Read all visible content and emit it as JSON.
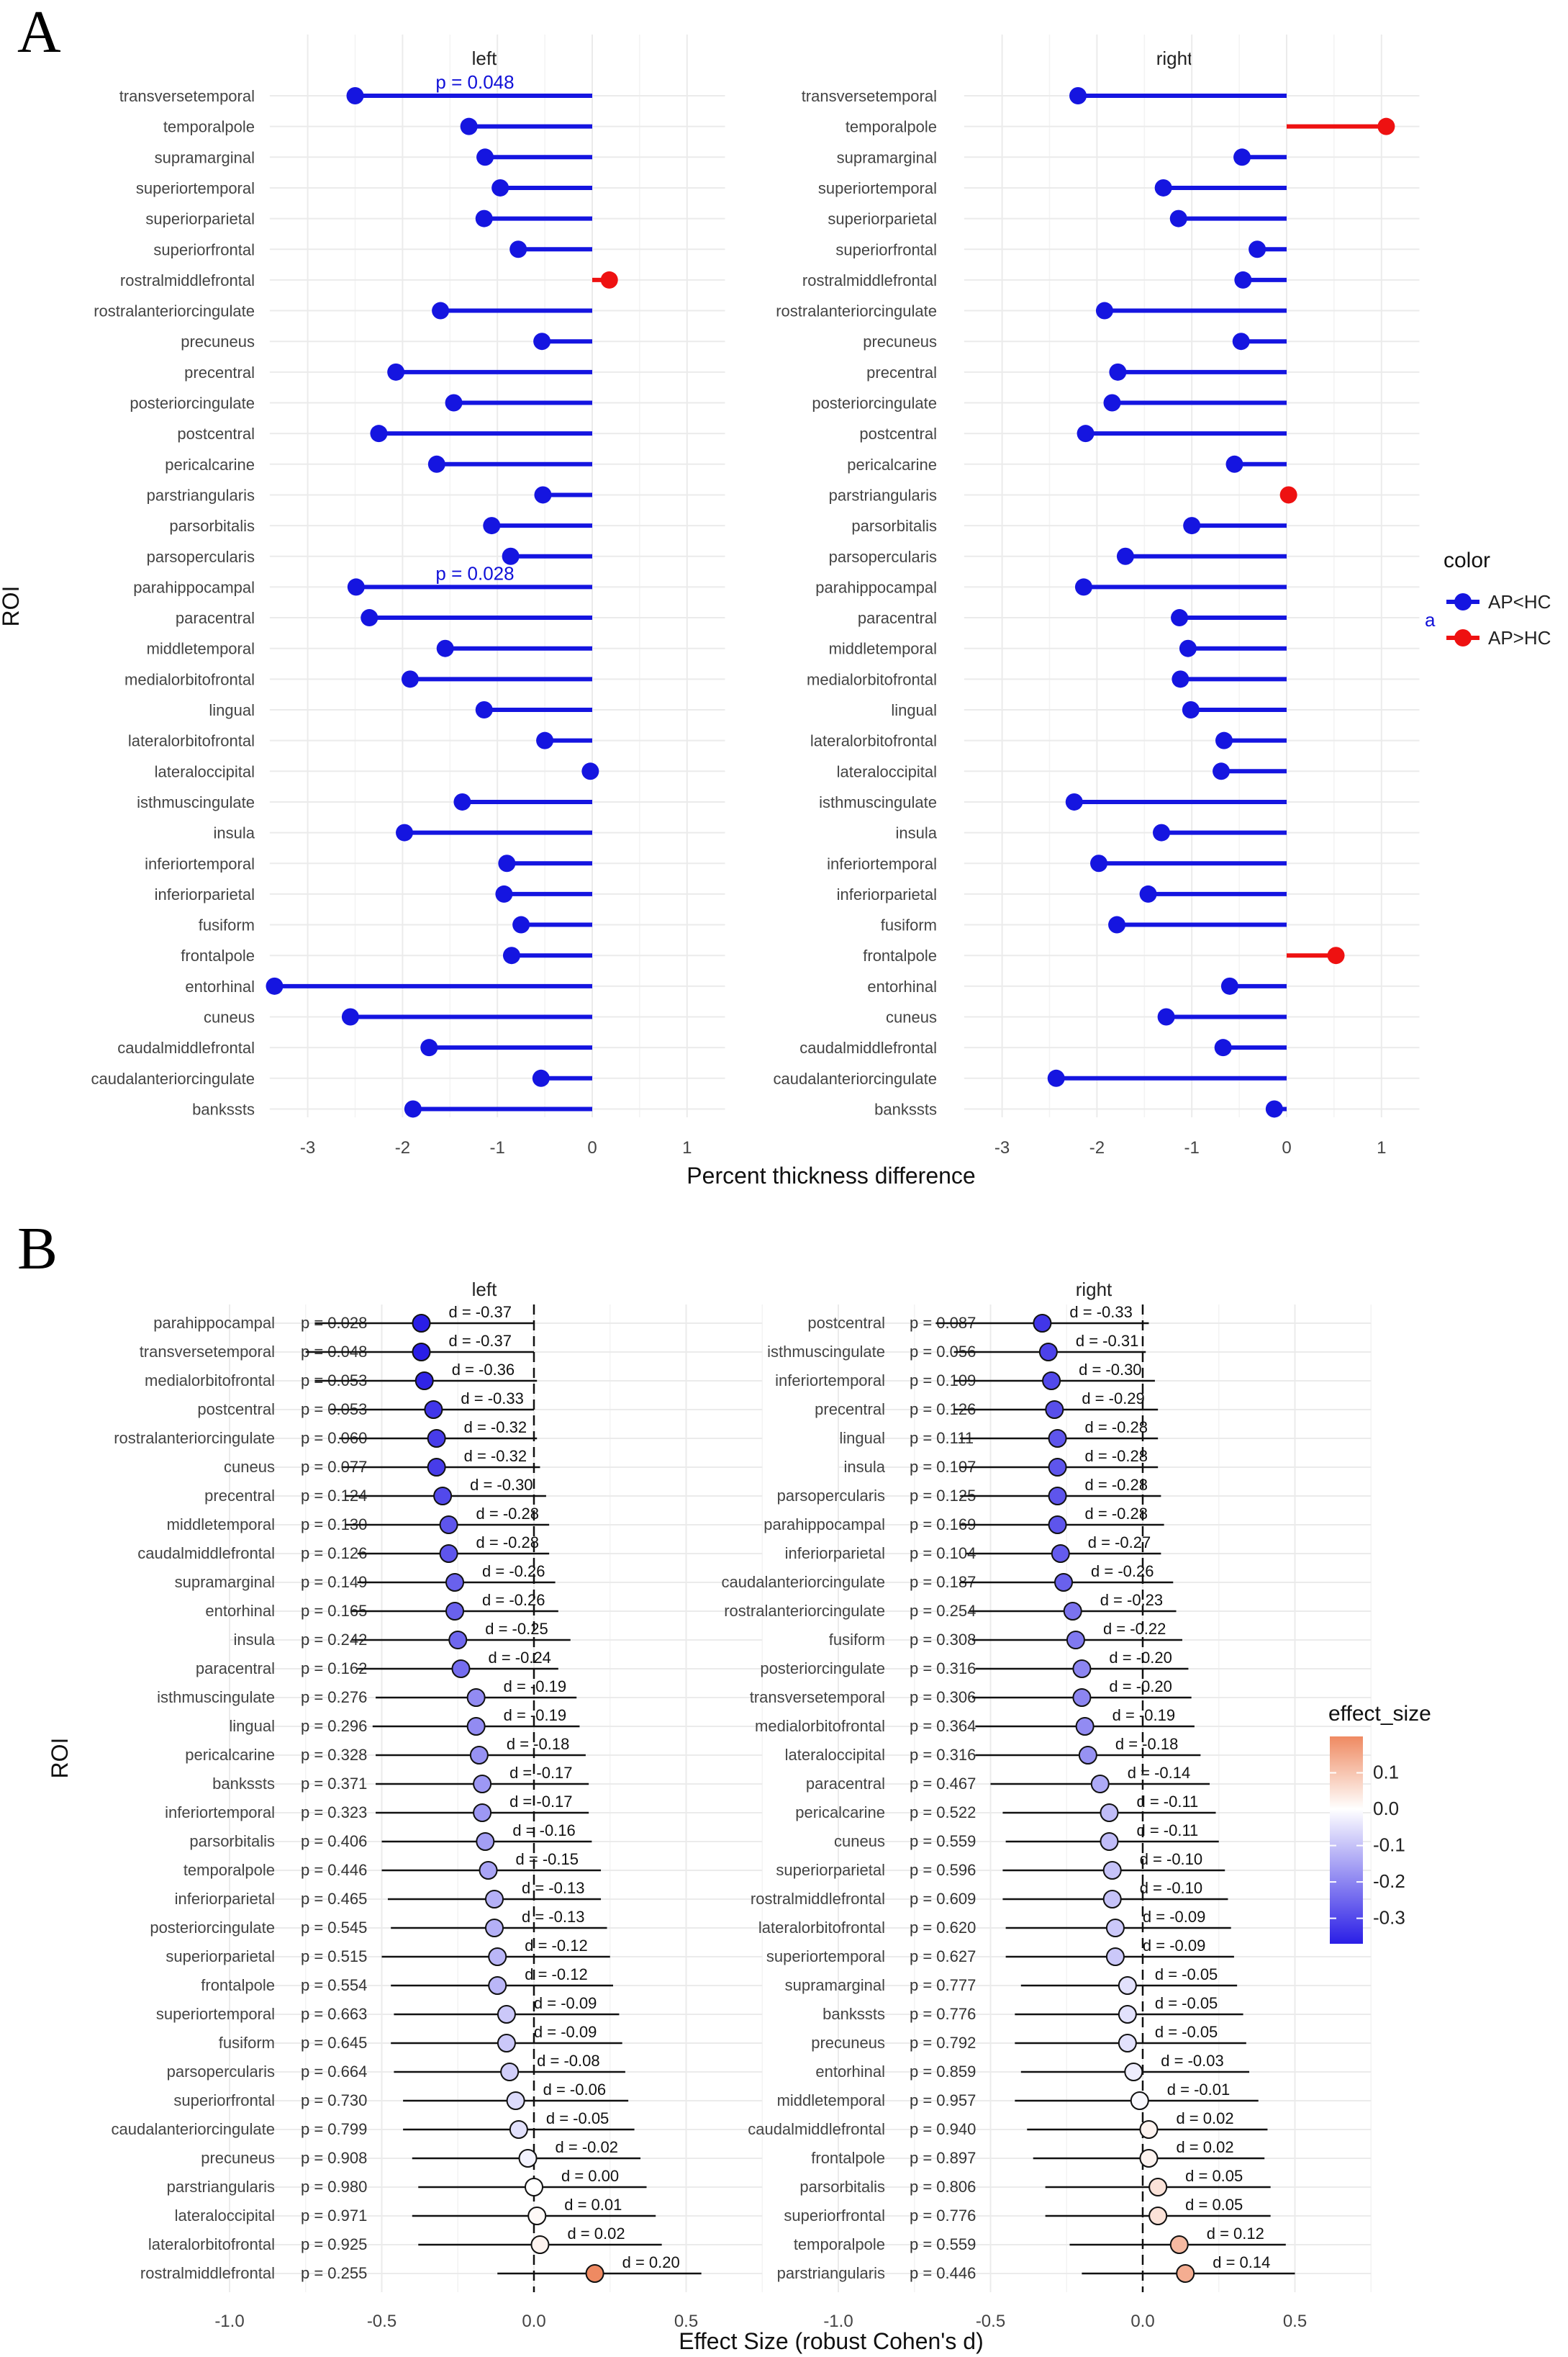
{
  "panel_a": {
    "letter": "A",
    "xlabel": "Percent thickness difference",
    "ylabel": "ROI",
    "legend": {
      "title": "color",
      "key_glyph": "a",
      "entries": [
        {
          "label": "AP<HC",
          "color": "#1515e0"
        },
        {
          "label": "AP>HC",
          "color": "#ee1111"
        }
      ]
    },
    "annotations": [
      {
        "facet": "left",
        "roi": "transversetemporal",
        "text": "p = 0.048"
      },
      {
        "facet": "left",
        "roi": "parahippocampal",
        "text": "p = 0.028"
      }
    ]
  },
  "panel_b": {
    "letter": "B",
    "xlabel": "Effect Size (robust Cohen's d)",
    "ylabel": "ROI",
    "colorbar": {
      "title": "effect_size",
      "ticks": [
        "0.1",
        "0.0",
        "-0.1",
        "-0.2",
        "-0.3"
      ],
      "tick_values": [
        0.1,
        0.0,
        -0.1,
        -0.2,
        -0.3
      ],
      "range": [
        -0.37,
        0.2
      ]
    }
  },
  "chart_data": [
    {
      "type": "lollipop",
      "panel": "A",
      "facet": "left",
      "xlabel": "Percent thickness difference",
      "ylabel": "ROI",
      "xlim": [
        -3.4,
        1.4
      ],
      "xticks": [
        -3,
        -2,
        -1,
        0,
        1
      ],
      "rois": [
        "transversetemporal",
        "temporalpole",
        "supramarginal",
        "superiortemporal",
        "superiorparietal",
        "superiorfrontal",
        "rostralmiddlefrontal",
        "rostralanteriorcingulate",
        "precuneus",
        "precentral",
        "posteriorcingulate",
        "postcentral",
        "pericalcarine",
        "parstriangularis",
        "parsorbitalis",
        "parsopercularis",
        "parahippocampal",
        "paracentral",
        "middletemporal",
        "medialorbitofrontal",
        "lingual",
        "lateralorbitofrontal",
        "lateraloccipital",
        "isthmuscingulate",
        "insula",
        "inferiortemporal",
        "inferiorparietal",
        "fusiform",
        "frontalpole",
        "entorhinal",
        "cuneus",
        "caudalmiddlefrontal",
        "caudalanteriorcingulate",
        "bankssts"
      ],
      "values": [
        -2.5,
        -1.3,
        -1.13,
        -0.97,
        -1.14,
        -0.78,
        0.18,
        -1.6,
        -0.53,
        -2.07,
        -1.46,
        -2.25,
        -1.64,
        -0.52,
        -1.06,
        -0.86,
        -2.49,
        -2.35,
        -1.55,
        -1.92,
        -1.14,
        -0.5,
        -0.02,
        -1.37,
        -1.98,
        -0.9,
        -0.93,
        -0.75,
        -0.85,
        -3.35,
        -2.55,
        -1.72,
        -0.54,
        -1.89
      ]
    },
    {
      "type": "lollipop",
      "panel": "A",
      "facet": "right",
      "xlabel": "Percent thickness difference",
      "ylabel": "ROI",
      "xlim": [
        -3.4,
        1.4
      ],
      "xticks": [
        -3,
        -2,
        -1,
        0,
        1
      ],
      "rois": [
        "transversetemporal",
        "temporalpole",
        "supramarginal",
        "superiortemporal",
        "superiorparietal",
        "superiorfrontal",
        "rostralmiddlefrontal",
        "rostralanteriorcingulate",
        "precuneus",
        "precentral",
        "posteriorcingulate",
        "postcentral",
        "pericalcarine",
        "parstriangularis",
        "parsorbitalis",
        "parsopercularis",
        "parahippocampal",
        "paracentral",
        "middletemporal",
        "medialorbitofrontal",
        "lingual",
        "lateralorbitofrontal",
        "lateraloccipital",
        "isthmuscingulate",
        "insula",
        "inferiortemporal",
        "inferiorparietal",
        "fusiform",
        "frontalpole",
        "entorhinal",
        "cuneus",
        "caudalmiddlefrontal",
        "caudalanteriorcingulate",
        "bankssts"
      ],
      "values": [
        -2.2,
        1.05,
        -0.47,
        -1.3,
        -1.14,
        -0.31,
        -0.46,
        -1.92,
        -0.48,
        -1.78,
        -1.84,
        -2.12,
        -0.55,
        0.02,
        -1.0,
        -1.7,
        -2.14,
        -1.13,
        -1.04,
        -1.12,
        -1.01,
        -0.66,
        -0.69,
        -2.24,
        -1.32,
        -1.98,
        -1.46,
        -1.79,
        0.52,
        -0.6,
        -1.27,
        -0.67,
        -2.43,
        -0.13
      ]
    },
    {
      "type": "forest",
      "panel": "B",
      "facet": "left",
      "xlabel": "Effect Size (robust Cohen's d)",
      "ylabel": "ROI",
      "xlim": [
        -1.0,
        0.75
      ],
      "xticks": [
        -1.0,
        -0.5,
        0.0,
        0.5
      ],
      "xtick_labels": [
        "-1.0",
        "-0.5",
        "0.0",
        "0.5"
      ],
      "rows": [
        {
          "roi": "parahippocampal",
          "p": "p = 0.028",
          "d": "d = -0.37",
          "est": -0.37,
          "lo": -0.72,
          "hi": 0.0
        },
        {
          "roi": "transversetemporal",
          "p": "p = 0.048",
          "d": "d = -0.37",
          "est": -0.37,
          "lo": -0.75,
          "hi": 0.0
        },
        {
          "roi": "medialorbitofrontal",
          "p": "p = 0.053",
          "d": "d = -0.36",
          "est": -0.36,
          "lo": -0.72,
          "hi": 0.01
        },
        {
          "roi": "postcentral",
          "p": "p = 0.053",
          "d": "d = -0.33",
          "est": -0.33,
          "lo": -0.67,
          "hi": 0.0
        },
        {
          "roi": "rostralanteriorcingulate",
          "p": "p = 0.060",
          "d": "d = -0.32",
          "est": -0.32,
          "lo": -0.64,
          "hi": 0.01
        },
        {
          "roi": "cuneus",
          "p": "p = 0.077",
          "d": "d = -0.32",
          "est": -0.32,
          "lo": -0.63,
          "hi": 0.02
        },
        {
          "roi": "precentral",
          "p": "p = 0.124",
          "d": "d = -0.30",
          "est": -0.3,
          "lo": -0.62,
          "hi": 0.04
        },
        {
          "roi": "middletemporal",
          "p": "p = 0.130",
          "d": "d = -0.28",
          "est": -0.28,
          "lo": -0.62,
          "hi": 0.05
        },
        {
          "roi": "caudalmiddlefrontal",
          "p": "p = 0.126",
          "d": "d = -0.28",
          "est": -0.28,
          "lo": -0.58,
          "hi": 0.05
        },
        {
          "roi": "supramarginal",
          "p": "p = 0.149",
          "d": "d = -0.26",
          "est": -0.26,
          "lo": -0.58,
          "hi": 0.07
        },
        {
          "roi": "entorhinal",
          "p": "p = 0.165",
          "d": "d = -0.26",
          "est": -0.26,
          "lo": -0.6,
          "hi": 0.08
        },
        {
          "roi": "insula",
          "p": "p = 0.242",
          "d": "d = -0.25",
          "est": -0.25,
          "lo": -0.6,
          "hi": 0.12
        },
        {
          "roi": "paracentral",
          "p": "p = 0.162",
          "d": "d = -0.24",
          "est": -0.24,
          "lo": -0.58,
          "hi": 0.08
        },
        {
          "roi": "isthmuscingulate",
          "p": "p = 0.276",
          "d": "d = -0.19",
          "est": -0.19,
          "lo": -0.52,
          "hi": 0.14
        },
        {
          "roi": "lingual",
          "p": "p = 0.296",
          "d": "d = -0.19",
          "est": -0.19,
          "lo": -0.53,
          "hi": 0.15
        },
        {
          "roi": "pericalcarine",
          "p": "p = 0.328",
          "d": "d = -0.18",
          "est": -0.18,
          "lo": -0.52,
          "hi": 0.17
        },
        {
          "roi": "bankssts",
          "p": "p = 0.371",
          "d": "d = -0.17",
          "est": -0.17,
          "lo": -0.52,
          "hi": 0.18
        },
        {
          "roi": "inferiortemporal",
          "p": "p = 0.323",
          "d": "d = -0.17",
          "est": -0.17,
          "lo": -0.52,
          "hi": 0.18
        },
        {
          "roi": "parsorbitalis",
          "p": "p = 0.406",
          "d": "d = -0.16",
          "est": -0.16,
          "lo": -0.5,
          "hi": 0.19
        },
        {
          "roi": "temporalpole",
          "p": "p = 0.446",
          "d": "d = -0.15",
          "est": -0.15,
          "lo": -0.5,
          "hi": 0.22
        },
        {
          "roi": "inferiorparietal",
          "p": "p = 0.465",
          "d": "d = -0.13",
          "est": -0.13,
          "lo": -0.48,
          "hi": 0.22
        },
        {
          "roi": "posteriorcingulate",
          "p": "p = 0.545",
          "d": "d = -0.13",
          "est": -0.13,
          "lo": -0.47,
          "hi": 0.24
        },
        {
          "roi": "superiorparietal",
          "p": "p = 0.515",
          "d": "d = -0.12",
          "est": -0.12,
          "lo": -0.5,
          "hi": 0.25
        },
        {
          "roi": "frontalpole",
          "p": "p = 0.554",
          "d": "d = -0.12",
          "est": -0.12,
          "lo": -0.47,
          "hi": 0.26
        },
        {
          "roi": "superiortemporal",
          "p": "p = 0.663",
          "d": "d = -0.09",
          "est": -0.09,
          "lo": -0.46,
          "hi": 0.28
        },
        {
          "roi": "fusiform",
          "p": "p = 0.645",
          "d": "d = -0.09",
          "est": -0.09,
          "lo": -0.47,
          "hi": 0.29
        },
        {
          "roi": "parsopercularis",
          "p": "p = 0.664",
          "d": "d = -0.08",
          "est": -0.08,
          "lo": -0.46,
          "hi": 0.3
        },
        {
          "roi": "superiorfrontal",
          "p": "p = 0.730",
          "d": "d = -0.06",
          "est": -0.06,
          "lo": -0.43,
          "hi": 0.31
        },
        {
          "roi": "caudalanteriorcingulate",
          "p": "p = 0.799",
          "d": "d = -0.05",
          "est": -0.05,
          "lo": -0.43,
          "hi": 0.33
        },
        {
          "roi": "precuneus",
          "p": "p = 0.908",
          "d": "d = -0.02",
          "est": -0.02,
          "lo": -0.4,
          "hi": 0.35
        },
        {
          "roi": "parstriangularis",
          "p": "p = 0.980",
          "d": "d = 0.00",
          "est": 0.0,
          "lo": -0.38,
          "hi": 0.37
        },
        {
          "roi": "lateraloccipital",
          "p": "p = 0.971",
          "d": "d = 0.01",
          "est": 0.01,
          "lo": -0.4,
          "hi": 0.4
        },
        {
          "roi": "lateralorbitofrontal",
          "p": "p = 0.925",
          "d": "d = 0.02",
          "est": 0.02,
          "lo": -0.38,
          "hi": 0.42
        },
        {
          "roi": "rostralmiddlefrontal",
          "p": "p = 0.255",
          "d": "d = 0.20",
          "est": 0.2,
          "lo": -0.12,
          "hi": 0.55
        }
      ]
    },
    {
      "type": "forest",
      "panel": "B",
      "facet": "right",
      "xlabel": "Effect Size (robust Cohen's d)",
      "ylabel": "ROI",
      "xlim": [
        -1.0,
        0.75
      ],
      "xticks": [
        -1.0,
        -0.5,
        0.0,
        0.5
      ],
      "xtick_labels": [
        "-1.0",
        "-0.5",
        "0.0",
        "0.5"
      ],
      "rows": [
        {
          "roi": "postcentral",
          "p": "p = 0.087",
          "d": "d = -0.33",
          "est": -0.33,
          "lo": -0.68,
          "hi": 0.02
        },
        {
          "roi": "isthmuscingulate",
          "p": "p = 0.056",
          "d": "d = -0.31",
          "est": -0.31,
          "lo": -0.62,
          "hi": 0.01
        },
        {
          "roi": "inferiortemporal",
          "p": "p = 0.109",
          "d": "d = -0.30",
          "est": -0.3,
          "lo": -0.62,
          "hi": 0.04
        },
        {
          "roi": "precentral",
          "p": "p = 0.126",
          "d": "d = -0.29",
          "est": -0.29,
          "lo": -0.62,
          "hi": 0.05
        },
        {
          "roi": "lingual",
          "p": "p = 0.111",
          "d": "d = -0.28",
          "est": -0.28,
          "lo": -0.6,
          "hi": 0.05
        },
        {
          "roi": "insula",
          "p": "p = 0.107",
          "d": "d = -0.28",
          "est": -0.28,
          "lo": -0.6,
          "hi": 0.05
        },
        {
          "roi": "parsopercularis",
          "p": "p = 0.125",
          "d": "d = -0.28",
          "est": -0.28,
          "lo": -0.6,
          "hi": 0.06
        },
        {
          "roi": "parahippocampal",
          "p": "p = 0.169",
          "d": "d = -0.28",
          "est": -0.28,
          "lo": -0.6,
          "hi": 0.07
        },
        {
          "roi": "inferiorparietal",
          "p": "p = 0.104",
          "d": "d = -0.27",
          "est": -0.27,
          "lo": -0.58,
          "hi": 0.06
        },
        {
          "roi": "caudalanteriorcingulate",
          "p": "p = 0.187",
          "d": "d = -0.26",
          "est": -0.26,
          "lo": -0.6,
          "hi": 0.1
        },
        {
          "roi": "rostralanteriorcingulate",
          "p": "p = 0.254",
          "d": "d = -0.23",
          "est": -0.23,
          "lo": -0.57,
          "hi": 0.11
        },
        {
          "roi": "fusiform",
          "p": "p = 0.308",
          "d": "d = -0.22",
          "est": -0.22,
          "lo": -0.56,
          "hi": 0.13
        },
        {
          "roi": "posteriorcingulate",
          "p": "p = 0.316",
          "d": "d = -0.20",
          "est": -0.2,
          "lo": -0.55,
          "hi": 0.15
        },
        {
          "roi": "transversetemporal",
          "p": "p = 0.306",
          "d": "d = -0.20",
          "est": -0.2,
          "lo": -0.56,
          "hi": 0.16
        },
        {
          "roi": "medialorbitofrontal",
          "p": "p = 0.364",
          "d": "d = -0.19",
          "est": -0.19,
          "lo": -0.55,
          "hi": 0.17
        },
        {
          "roi": "lateraloccipital",
          "p": "p = 0.316",
          "d": "d = -0.18",
          "est": -0.18,
          "lo": -0.55,
          "hi": 0.19
        },
        {
          "roi": "paracentral",
          "p": "p = 0.467",
          "d": "d = -0.14",
          "est": -0.14,
          "lo": -0.5,
          "hi": 0.22
        },
        {
          "roi": "pericalcarine",
          "p": "p = 0.522",
          "d": "d = -0.11",
          "est": -0.11,
          "lo": -0.46,
          "hi": 0.24
        },
        {
          "roi": "cuneus",
          "p": "p = 0.559",
          "d": "d = -0.11",
          "est": -0.11,
          "lo": -0.45,
          "hi": 0.25
        },
        {
          "roi": "superiorparietal",
          "p": "p = 0.596",
          "d": "d = -0.10",
          "est": -0.1,
          "lo": -0.46,
          "hi": 0.27
        },
        {
          "roi": "rostralmiddlefrontal",
          "p": "p = 0.609",
          "d": "d = -0.10",
          "est": -0.1,
          "lo": -0.46,
          "hi": 0.28
        },
        {
          "roi": "lateralorbitofrontal",
          "p": "p = 0.620",
          "d": "d = -0.09",
          "est": -0.09,
          "lo": -0.45,
          "hi": 0.29
        },
        {
          "roi": "superiortemporal",
          "p": "p = 0.627",
          "d": "d = -0.09",
          "est": -0.09,
          "lo": -0.45,
          "hi": 0.3
        },
        {
          "roi": "supramarginal",
          "p": "p = 0.777",
          "d": "d = -0.05",
          "est": -0.05,
          "lo": -0.4,
          "hi": 0.31
        },
        {
          "roi": "bankssts",
          "p": "p = 0.776",
          "d": "d = -0.05",
          "est": -0.05,
          "lo": -0.42,
          "hi": 0.33
        },
        {
          "roi": "precuneus",
          "p": "p = 0.792",
          "d": "d = -0.05",
          "est": -0.05,
          "lo": -0.42,
          "hi": 0.34
        },
        {
          "roi": "entorhinal",
          "p": "p = 0.859",
          "d": "d = -0.03",
          "est": -0.03,
          "lo": -0.4,
          "hi": 0.35
        },
        {
          "roi": "middletemporal",
          "p": "p = 0.957",
          "d": "d = -0.01",
          "est": -0.01,
          "lo": -0.42,
          "hi": 0.38
        },
        {
          "roi": "caudalmiddlefrontal",
          "p": "p = 0.940",
          "d": "d = 0.02",
          "est": 0.02,
          "lo": -0.38,
          "hi": 0.41
        },
        {
          "roi": "frontalpole",
          "p": "p = 0.897",
          "d": "d = 0.02",
          "est": 0.02,
          "lo": -0.36,
          "hi": 0.4
        },
        {
          "roi": "parsorbitalis",
          "p": "p = 0.806",
          "d": "d = 0.05",
          "est": 0.05,
          "lo": -0.32,
          "hi": 0.42
        },
        {
          "roi": "superiorfrontal",
          "p": "p = 0.776",
          "d": "d = 0.05",
          "est": 0.05,
          "lo": -0.32,
          "hi": 0.42
        },
        {
          "roi": "temporalpole",
          "p": "p = 0.559",
          "d": "d = 0.12",
          "est": 0.12,
          "lo": -0.24,
          "hi": 0.47
        },
        {
          "roi": "parstriangularis",
          "p": "p = 0.446",
          "d": "d = 0.14",
          "est": 0.14,
          "lo": -0.2,
          "hi": 0.5
        }
      ]
    }
  ]
}
